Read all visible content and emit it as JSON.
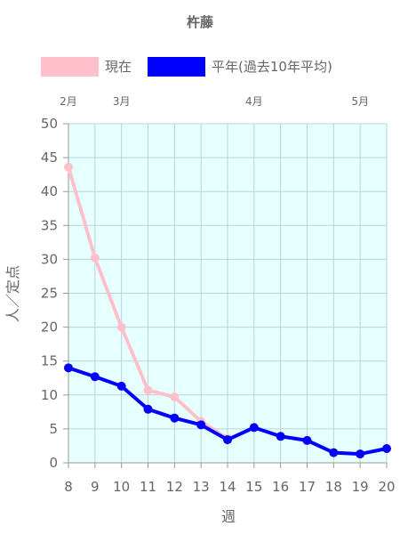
{
  "chart_data": {
    "type": "line",
    "title": "杵藤",
    "xlabel": "週",
    "ylabel": "人／定点",
    "x": [
      8,
      9,
      10,
      11,
      12,
      13,
      14,
      15,
      16,
      17,
      18,
      19,
      20
    ],
    "ylim": [
      0,
      50
    ],
    "yticks": [
      0,
      5,
      10,
      15,
      20,
      25,
      30,
      35,
      40,
      45,
      50
    ],
    "grid": true,
    "legend_position": "top",
    "plot_background": "#e6ffff",
    "month_labels": [
      {
        "label": "2月",
        "x": 8
      },
      {
        "label": "3月",
        "x": 10
      },
      {
        "label": "4月",
        "x": 15
      },
      {
        "label": "5月",
        "x": 19
      }
    ],
    "series": [
      {
        "name": "現在",
        "color": "#ffc0cb",
        "values": [
          43.6,
          30.2,
          20.0,
          10.7,
          9.7,
          6.1,
          3.6,
          null,
          null,
          null,
          null,
          null,
          null
        ]
      },
      {
        "name": "平年(過去10年平均)",
        "color": "#0000ff",
        "values": [
          14.0,
          12.7,
          11.3,
          7.9,
          6.6,
          5.6,
          3.4,
          5.2,
          3.9,
          3.3,
          1.5,
          1.3,
          2.1
        ]
      }
    ]
  }
}
